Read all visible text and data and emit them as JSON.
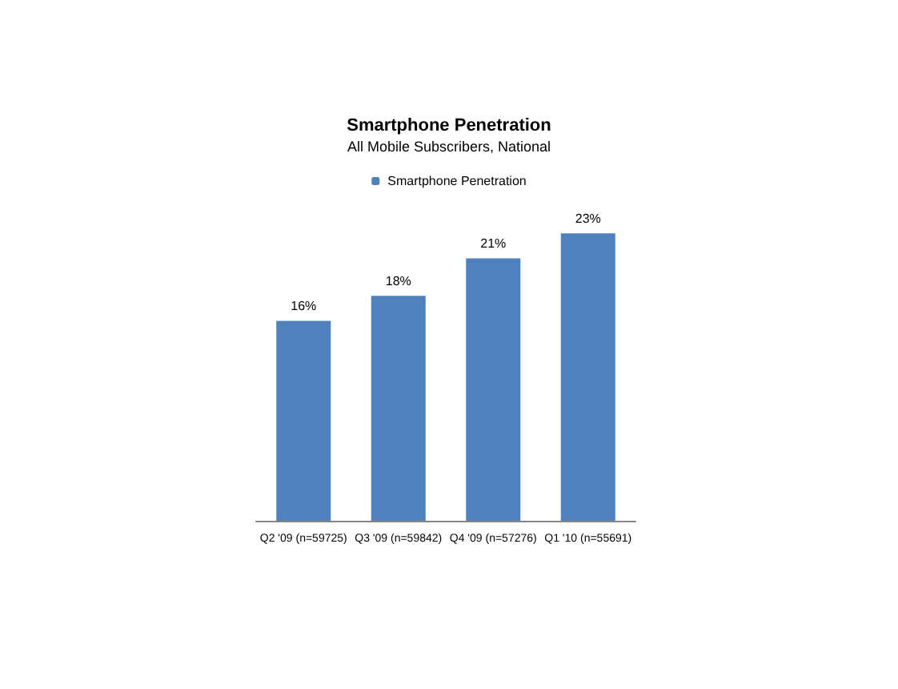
{
  "chart_data": {
    "type": "bar",
    "title": "Smartphone Penetration",
    "subtitle": "All Mobile Subscribers, National",
    "categories": [
      "Q2 '09 (n=59725)",
      "Q3 '09 (n=59842)",
      "Q4 '09 (n=57276)",
      "Q1 '10 (n=55691)"
    ],
    "series": [
      {
        "name": "Smartphone Penetration",
        "color": "#4f81bd",
        "values": [
          16,
          18,
          21,
          23
        ],
        "value_labels": [
          "16%",
          "18%",
          "21%",
          "23%"
        ]
      }
    ],
    "legend": "top"
  }
}
